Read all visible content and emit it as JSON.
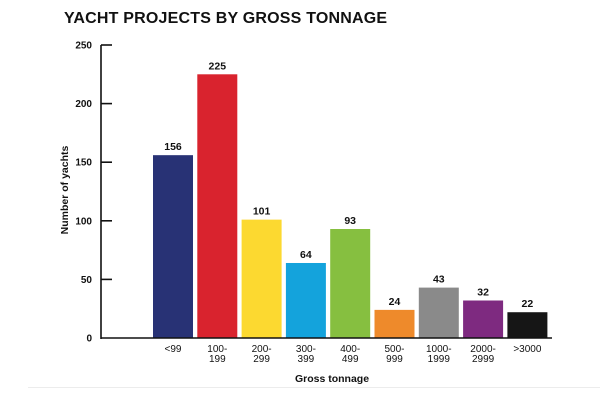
{
  "chart_data": {
    "type": "bar",
    "title": "YACHT PROJECTS BY GROSS TONNAGE",
    "xlabel": "Gross tonnage",
    "ylabel": "Number of yachts",
    "ylim": [
      0,
      250
    ],
    "yticks": [
      0,
      50,
      100,
      150,
      200,
      250
    ],
    "grid": false,
    "legend": "none",
    "categories": [
      {
        "line1": "<99",
        "line2": ""
      },
      {
        "line1": "100-",
        "line2": "199"
      },
      {
        "line1": "200-",
        "line2": "299"
      },
      {
        "line1": "300-",
        "line2": "399"
      },
      {
        "line1": "400-",
        "line2": "499"
      },
      {
        "line1": "500-",
        "line2": "999"
      },
      {
        "line1": "1000-",
        "line2": "1999"
      },
      {
        "line1": "2000-",
        "line2": "2999"
      },
      {
        "line1": ">3000",
        "line2": ""
      }
    ],
    "values": [
      156,
      225,
      101,
      64,
      93,
      24,
      43,
      32,
      22
    ],
    "colors": [
      "#283275",
      "#d9232e",
      "#fcd930",
      "#14a3dc",
      "#86bf40",
      "#ee8a2b",
      "#8a8a8a",
      "#7e2a80",
      "#161616"
    ]
  }
}
